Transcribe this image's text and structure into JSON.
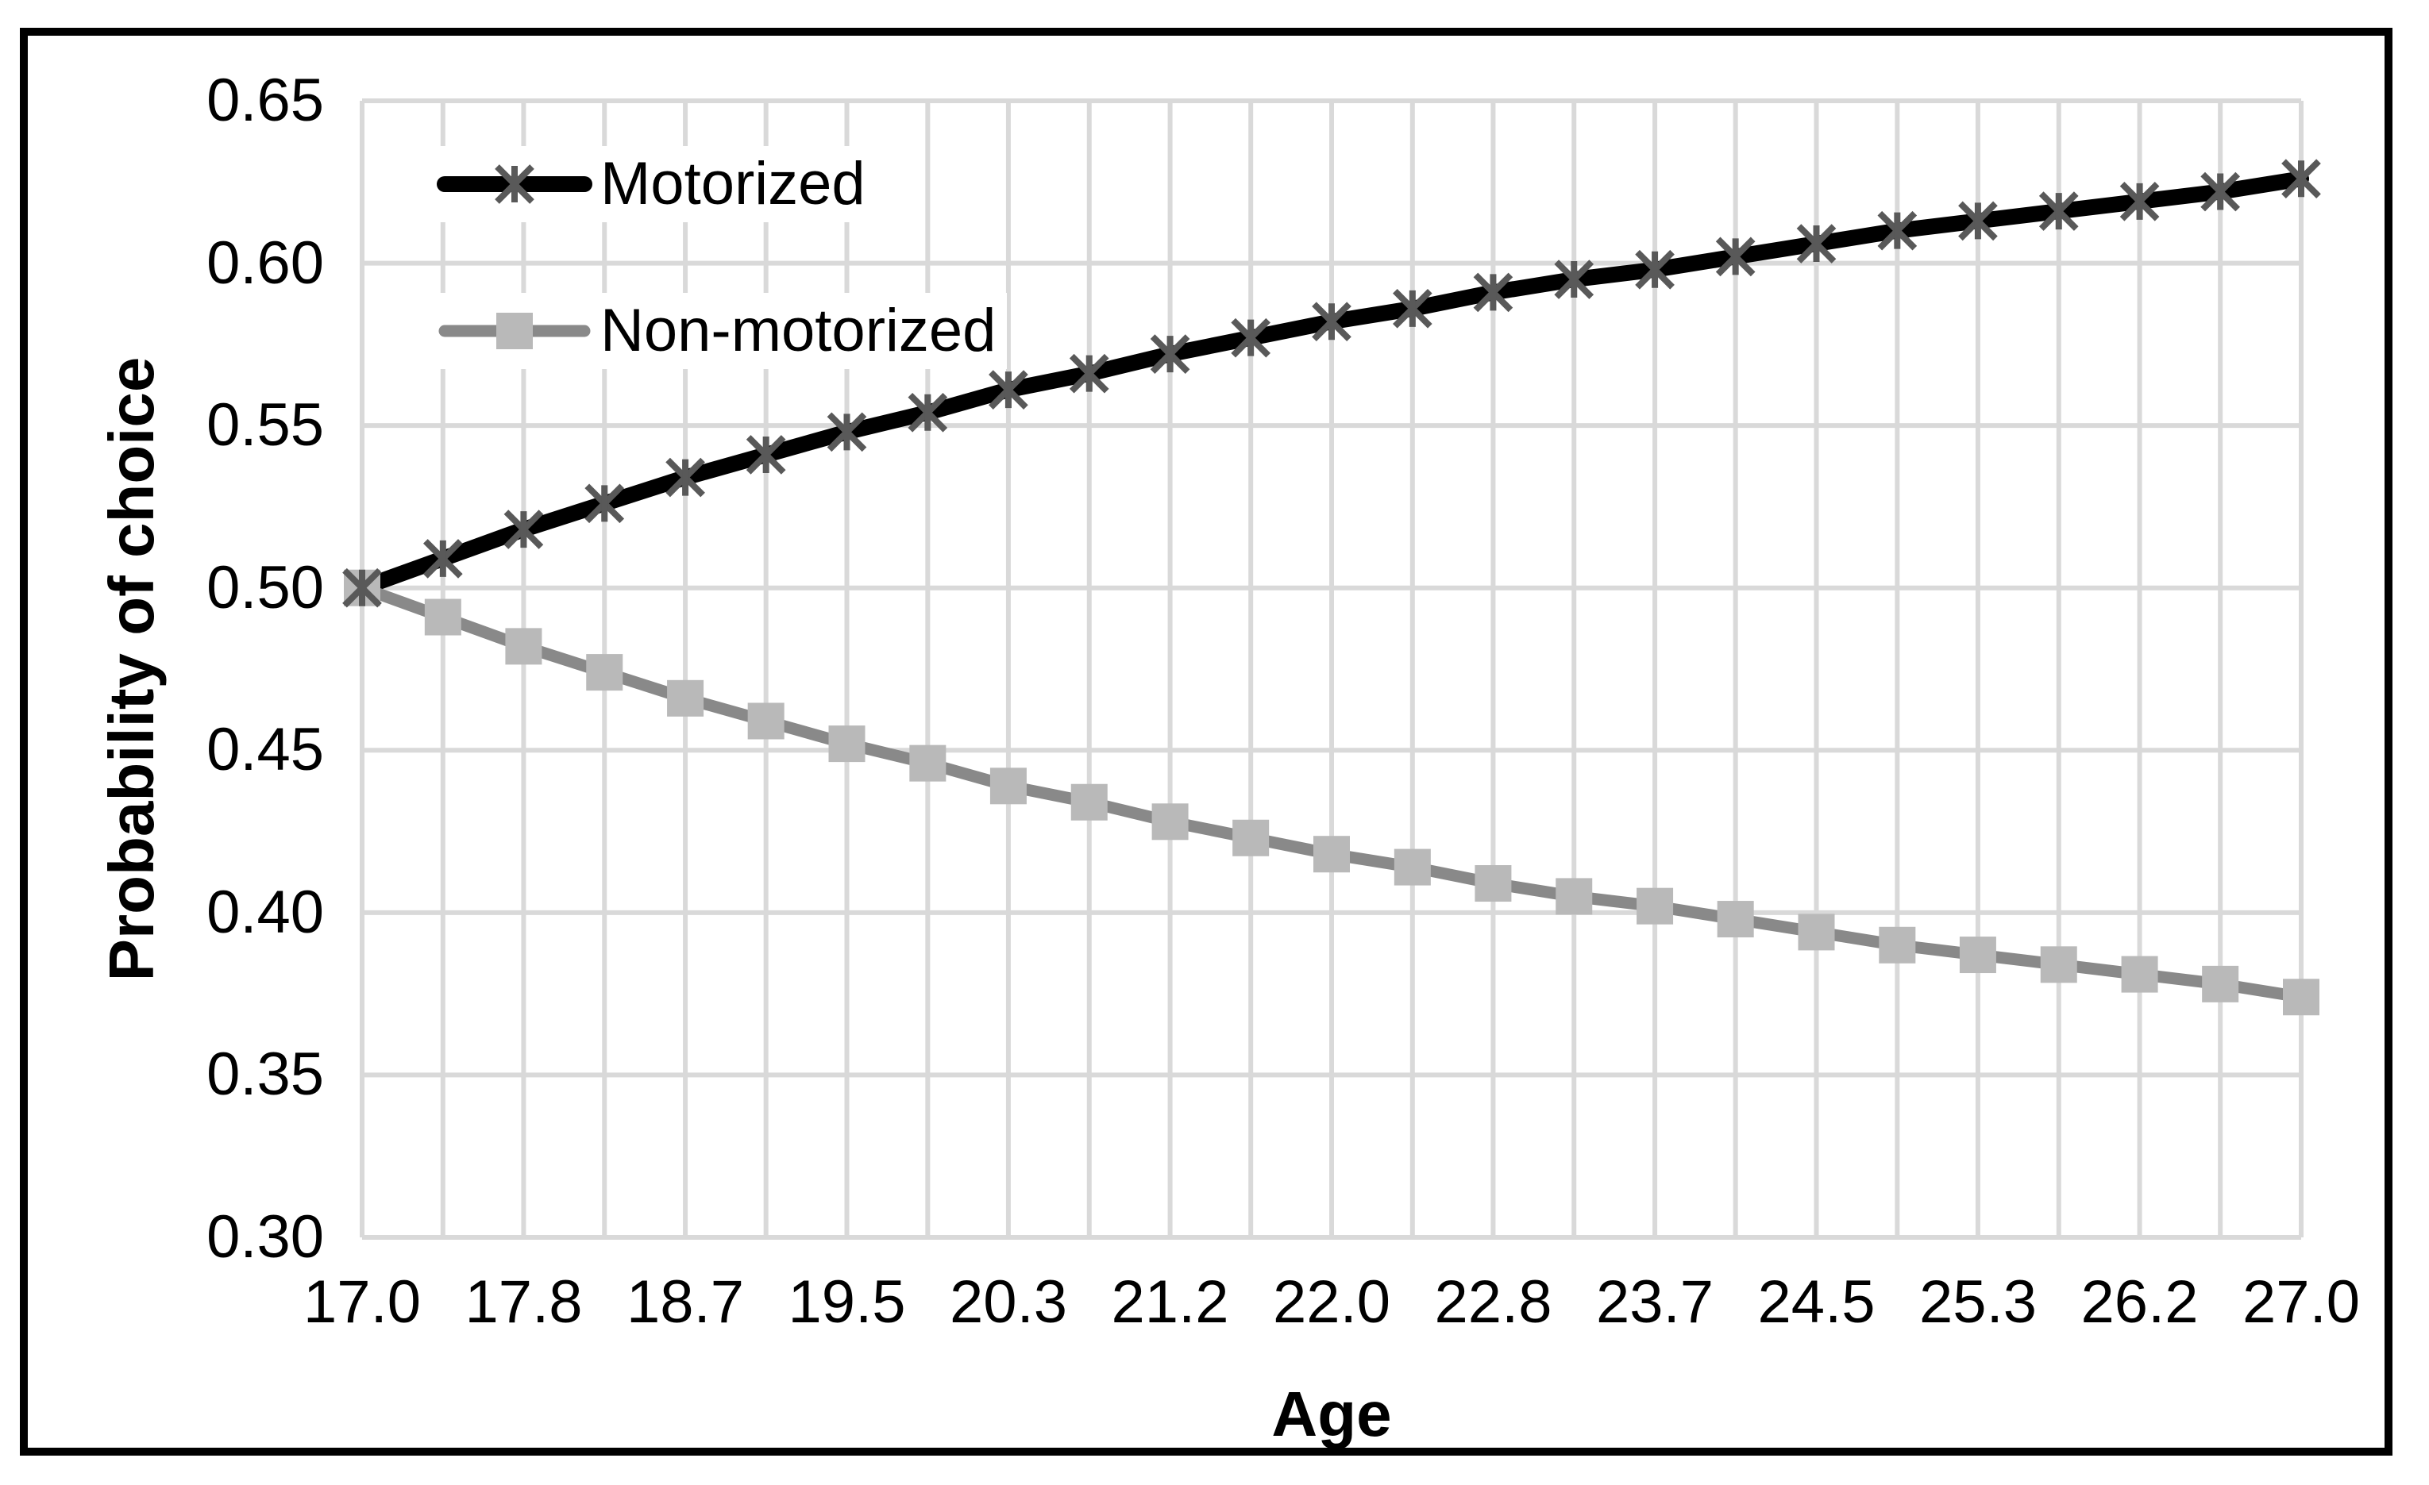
{
  "figure": {
    "background": "#ffffff",
    "frame_color": "#000000",
    "gridline_color": "#d9d9d9",
    "text_color": "#000000"
  },
  "chart_data": {
    "type": "line",
    "title": "",
    "xlabel": "Age",
    "ylabel": "Probability of choice",
    "x_range": [
      17.0,
      27.0
    ],
    "y_range": [
      0.3,
      0.65
    ],
    "y_tick_step": 0.05,
    "grid": true,
    "legend_position": "top-left-inside",
    "x_tick_labels": [
      "17.0",
      "17.8",
      "18.7",
      "19.5",
      "20.3",
      "21.2",
      "22.0",
      "22.8",
      "23.7",
      "24.5",
      "25.3",
      "26.2",
      "27.0"
    ],
    "y_tick_labels": [
      "0.65",
      "0.60",
      "0.55",
      "0.50",
      "0.45",
      "0.40",
      "0.35",
      "0.30"
    ],
    "x": [
      17.0,
      17.417,
      17.833,
      18.25,
      18.667,
      19.083,
      19.5,
      19.917,
      20.333,
      20.75,
      21.167,
      21.583,
      22.0,
      22.417,
      22.833,
      23.25,
      23.667,
      24.083,
      24.5,
      24.917,
      25.333,
      25.75,
      26.167,
      26.583,
      27.0
    ],
    "series": [
      {
        "name": "Motorized",
        "line_color": "#000000",
        "marker": "star",
        "marker_color": "#595959",
        "values": [
          0.5,
          0.509,
          0.518,
          0.526,
          0.534,
          0.541,
          0.548,
          0.554,
          0.561,
          0.566,
          0.572,
          0.577,
          0.582,
          0.586,
          0.591,
          0.595,
          0.598,
          0.602,
          0.606,
          0.61,
          0.613,
          0.616,
          0.619,
          0.622,
          0.626
        ]
      },
      {
        "name": "Non-motorized",
        "line_color": "#898989",
        "marker": "square",
        "marker_color": "#b9b9b9",
        "values": [
          0.5,
          0.491,
          0.482,
          0.474,
          0.466,
          0.459,
          0.452,
          0.446,
          0.439,
          0.434,
          0.428,
          0.423,
          0.418,
          0.414,
          0.409,
          0.405,
          0.402,
          0.398,
          0.394,
          0.39,
          0.387,
          0.384,
          0.381,
          0.378,
          0.374
        ]
      }
    ]
  }
}
